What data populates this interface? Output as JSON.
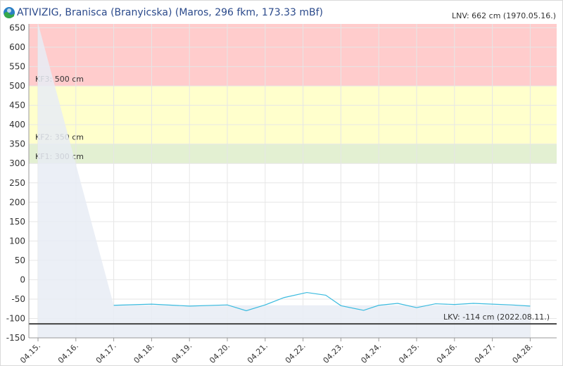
{
  "header": {
    "title": "ATIVIZIG, Branisca (Branyicska) (Maros, 296 fkm, 173.33 mBf)",
    "lnv_label": "LNV: 662 cm (1970.05.16.)"
  },
  "colors": {
    "red_zone": "#ffcccc",
    "yellow_zone": "#ffffcc",
    "green_zone": "#e3f0d2",
    "series_line": "#3bbbdf",
    "lkv_line": "#444444",
    "area_fill": "#e8ecf5"
  },
  "chart_data": {
    "type": "line",
    "title": "ATIVIZIG, Branisca (Branyicska) (Maros, 296 fkm, 173.33 mBf)",
    "ylim": [
      -150,
      660
    ],
    "yticks": [
      650,
      600,
      550,
      500,
      450,
      400,
      350,
      300,
      250,
      200,
      150,
      100,
      50,
      0,
      -50,
      -100,
      -150
    ],
    "xticks": [
      "04.15.",
      "04.16.",
      "04.17.",
      "04.18.",
      "04.19.",
      "04.20.",
      "04.21.",
      "04.22.",
      "04.23.",
      "04.24.",
      "04.25.",
      "04.26.",
      "04.27.",
      "04.28."
    ],
    "xlim": [
      0,
      13.2
    ],
    "grid": true,
    "bands": [
      {
        "from": 500,
        "to": 660,
        "label": "KF3: 500 cm",
        "color": "#ffcccc"
      },
      {
        "from": 350,
        "to": 500,
        "label": "KF2: 350 cm",
        "color": "#ffffcc"
      },
      {
        "from": 300,
        "to": 350,
        "label": "KF1: 300 cm",
        "color": "#e3f0d2"
      }
    ],
    "reference_lines": [
      {
        "value": -114,
        "label": "LKV: -114 cm (2022.08.11.)"
      }
    ],
    "lnv": {
      "value": 662,
      "label": "LNV: 662 cm (1970.05.16.)"
    },
    "area": {
      "x": [
        0.0,
        2.0,
        13.0
      ],
      "y": [
        662,
        -66,
        -66
      ]
    },
    "series": [
      {
        "x": [
          2.0,
          3.0,
          4.0,
          5.0,
          5.5,
          6.0,
          6.5,
          7.1,
          7.6,
          8.0,
          8.6,
          9.0,
          9.5,
          10.0,
          10.5,
          11.0,
          11.5,
          12.0,
          12.5,
          13.0
        ],
        "y": [
          -66,
          -63,
          -68,
          -65,
          -80,
          -65,
          -46,
          -33,
          -40,
          -67,
          -79,
          -66,
          -61,
          -72,
          -62,
          -64,
          -61,
          -63,
          -65,
          -68
        ]
      }
    ]
  }
}
